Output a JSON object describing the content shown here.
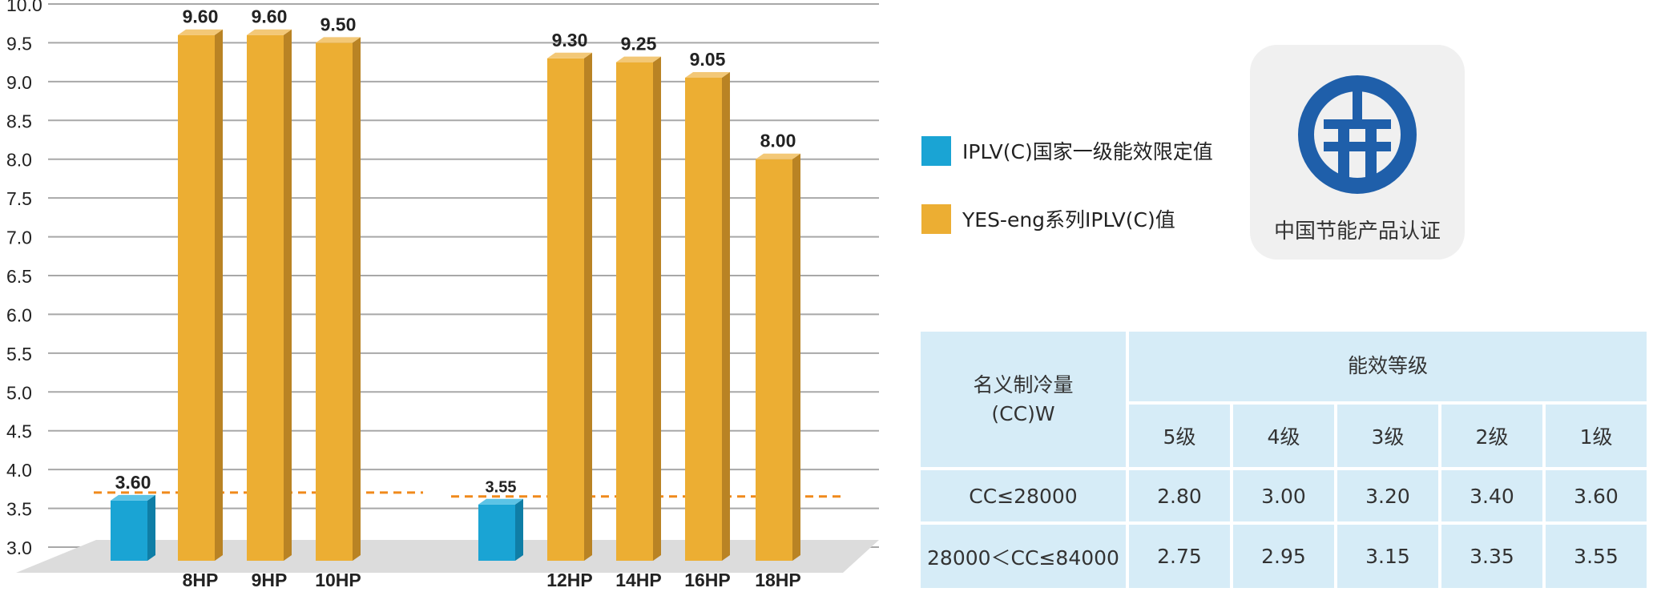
{
  "chart_data": {
    "type": "bar",
    "y_ticks": [
      "3.0",
      "3.5",
      "4.0",
      "4.5",
      "5.0",
      "5.5",
      "6.0",
      "6.5",
      "7.0",
      "7.5",
      "8.0",
      "8.5",
      "9.0",
      "9.5",
      "10.0"
    ],
    "ylim": [
      3.0,
      10.0
    ],
    "grid": true,
    "legend_placement": "right",
    "groups": [
      {
        "baseline": {
          "value": 3.6,
          "label": "3.60"
        },
        "bars": [
          {
            "category": "8HP",
            "value": 9.6,
            "label": "9.60"
          },
          {
            "category": "9HP",
            "value": 9.6,
            "label": "9.60"
          },
          {
            "category": "10HP",
            "value": 9.5,
            "label": "9.50"
          }
        ]
      },
      {
        "baseline": {
          "value": 3.55,
          "label": "3.55"
        },
        "bars": [
          {
            "category": "12HP",
            "value": 9.3,
            "label": "9.30"
          },
          {
            "category": "14HP",
            "value": 9.25,
            "label": "9.25"
          },
          {
            "category": "16HP",
            "value": 9.05,
            "label": "9.05"
          },
          {
            "category": "18HP",
            "value": 8.0,
            "label": "8.00"
          }
        ]
      }
    ],
    "series": [
      {
        "name": "IPLV(C)国家一级能效限定值",
        "color": "#1aa4d4",
        "color_dark": "#0f7ea6",
        "color_light": "#5cc3e6"
      },
      {
        "name": "YES-eng系列IPLV(C)值",
        "color": "#ecae33",
        "color_dark": "#b98324",
        "color_light": "#f3c877"
      }
    ],
    "dashed_line_color": "#f08a1c",
    "floor_color": "#dcdcdc",
    "grid_color": "#a8a8a8"
  },
  "logo": {
    "icon": "china-energy-saving-logo-icon",
    "text": "中国节能产品认证",
    "color": "#1f5faa"
  },
  "table": {
    "header_first": "名义制冷量\n(CC)W",
    "header_group": "能效等级",
    "grades": [
      "5级",
      "4级",
      "3级",
      "2级",
      "1级"
    ],
    "rows": [
      {
        "label": "CC≤28000",
        "values": [
          "2.80",
          "3.00",
          "3.20",
          "3.40",
          "3.60"
        ]
      },
      {
        "label": "28000＜CC≤84000",
        "values": [
          "2.75",
          "2.95",
          "3.15",
          "3.35",
          "3.55"
        ]
      }
    ]
  }
}
